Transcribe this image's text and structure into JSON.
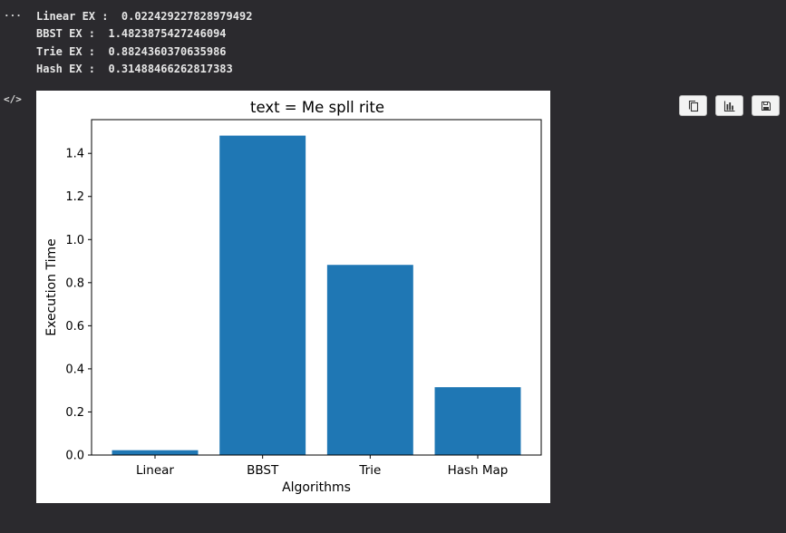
{
  "output": {
    "lines": [
      "Linear EX :  0.022429227828979492",
      "BBST EX :  1.4823875427246094",
      "Trie EX :  0.8824360370635986",
      "Hash EX :  0.31488466262817383"
    ],
    "more_label": "···",
    "code_toggle_label": "</>"
  },
  "toolbar": {
    "copy_icon": "copy-icon",
    "chart_icon": "bar-chart-icon",
    "save_icon": "save-icon"
  },
  "colors": {
    "background": "#2b2a2e",
    "bar": "#1f77b4",
    "output_text": "#e6e6e6"
  },
  "chart_data": {
    "type": "bar",
    "title": "text = Me spll rite",
    "xlabel": "Algorithms",
    "ylabel": "Execution Time",
    "categories": [
      "Linear",
      "BBST",
      "Trie",
      "Hash Map"
    ],
    "values": [
      0.022429227828979492,
      1.4823875427246094,
      0.8824360370635986,
      0.31488466262817383
    ],
    "ylim": [
      0,
      1.5565
    ],
    "yticks": [
      0.0,
      0.2,
      0.4,
      0.6,
      0.8,
      1.0,
      1.2,
      1.4
    ],
    "ytick_labels": [
      "0.0",
      "0.2",
      "0.4",
      "0.6",
      "0.8",
      "1.0",
      "1.2",
      "1.4"
    ],
    "grid": false,
    "legend": "none"
  }
}
